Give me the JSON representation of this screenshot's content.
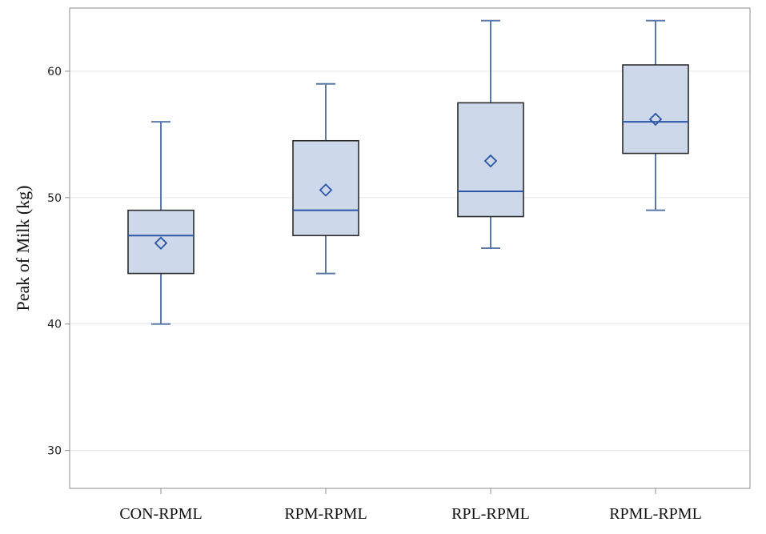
{
  "chart_data": {
    "type": "boxplot",
    "title": "",
    "xlabel": "",
    "ylabel": "Peak of Milk (kg)",
    "ylim": [
      27,
      65
    ],
    "yticks": [
      30,
      40,
      50,
      60
    ],
    "grid": true,
    "categories": [
      "CON-RPML",
      "RPM-RPML",
      "RPL-RPML",
      "RPML-RPML"
    ],
    "boxes": [
      {
        "category": "CON-RPML",
        "min": 40,
        "q1": 44,
        "median": 47,
        "q3": 49,
        "max": 56,
        "mean": 46.4
      },
      {
        "category": "RPM-RPML",
        "min": 44,
        "q1": 47,
        "median": 49,
        "q3": 54.5,
        "max": 59,
        "mean": 50.6
      },
      {
        "category": "RPL-RPML",
        "min": 46,
        "q1": 48.5,
        "median": 50.5,
        "q3": 57.5,
        "max": 64,
        "mean": 52.9
      },
      {
        "category": "RPML-RPML",
        "min": 49,
        "q1": 53.5,
        "median": 56,
        "q3": 60.5,
        "max": 64,
        "mean": 56.2
      }
    ],
    "colors": {
      "box_fill": "#cdd9ea",
      "box_edge": "#2b2b2b",
      "whisker": "#5a79a8",
      "median": "#2d56a8",
      "mean_marker": "#2d56a8",
      "grid": "#e6e6e6",
      "frame": "#8c8c8c"
    }
  }
}
